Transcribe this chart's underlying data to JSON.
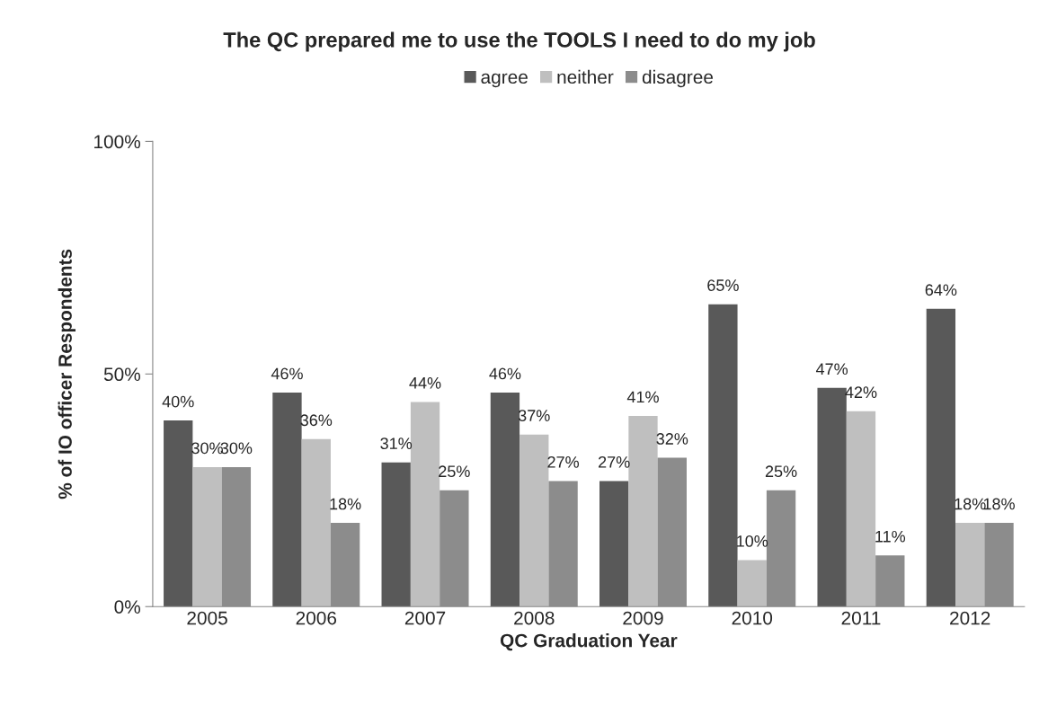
{
  "chart_data": {
    "type": "bar",
    "title": "The QC prepared me to use the TOOLS I need to do my job",
    "xlabel": "QC Graduation Year",
    "ylabel": "% of IO officer Respondents",
    "categories": [
      "2005",
      "2006",
      "2007",
      "2008",
      "2009",
      "2010",
      "2011",
      "2012"
    ],
    "series": [
      {
        "name": "agree",
        "color": "#595959",
        "values": [
          40,
          46,
          31,
          46,
          27,
          65,
          47,
          64
        ],
        "value_labels": [
          "40%",
          "46%",
          "31%",
          "46%",
          "27%",
          "65%",
          "47%",
          "64%"
        ]
      },
      {
        "name": "neither",
        "color": "#bfbfbf",
        "values": [
          30,
          36,
          44,
          37,
          41,
          10,
          42,
          18
        ],
        "value_labels": [
          "30%",
          "36%",
          "44%",
          "37%",
          "41%",
          "10%",
          "42%",
          "18%"
        ]
      },
      {
        "name": "disagree",
        "color": "#8c8c8c",
        "values": [
          30,
          18,
          25,
          27,
          32,
          25,
          11,
          18
        ],
        "value_labels": [
          "30%",
          "18%",
          "25%",
          "27%",
          "32%",
          "25%",
          "11%",
          "18%"
        ]
      }
    ],
    "ylim": [
      0,
      100
    ],
    "yticks": [
      {
        "value": 0,
        "label": "0%"
      },
      {
        "value": 50,
        "label": "50%"
      },
      {
        "value": 100,
        "label": "100%"
      }
    ],
    "grid": false,
    "legend": "top"
  }
}
